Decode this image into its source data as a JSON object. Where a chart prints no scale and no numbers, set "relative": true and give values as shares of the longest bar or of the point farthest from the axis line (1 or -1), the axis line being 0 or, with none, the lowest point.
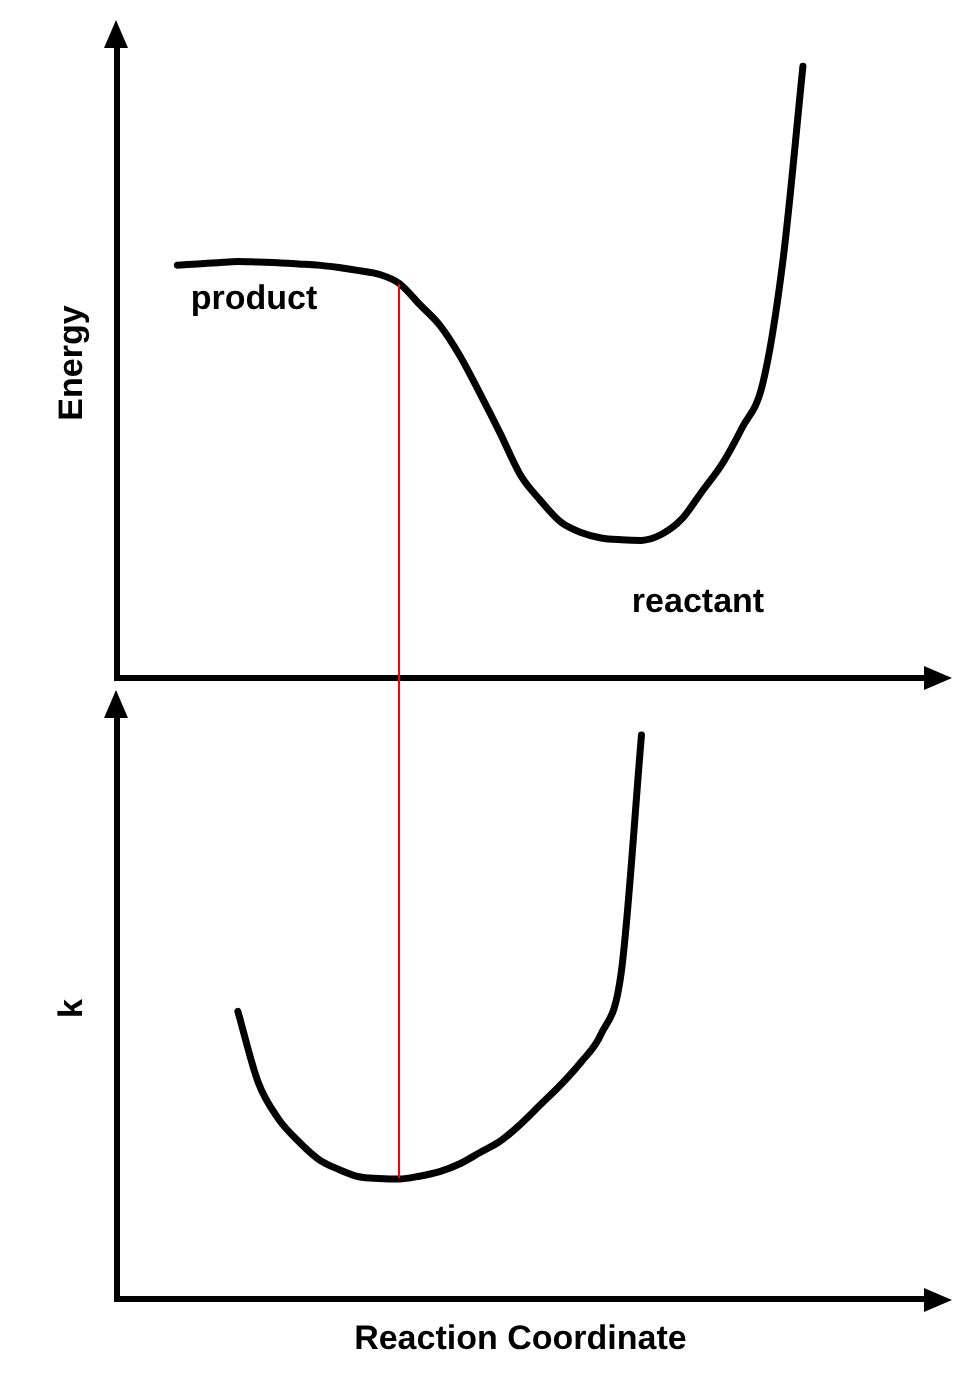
{
  "chart_data": [
    {
      "type": "line",
      "ylabel": "Energy",
      "relative": true,
      "tick_labels": false,
      "marker": "none",
      "categories": [
        null,
        null,
        null,
        null,
        null,
        null,
        null,
        null,
        null,
        null,
        null,
        null,
        null,
        null,
        null,
        null,
        null,
        null,
        null,
        null,
        null,
        null,
        null,
        null,
        null,
        null,
        null,
        null,
        null,
        null,
        null,
        null,
        null,
        null,
        null,
        null,
        null,
        null,
        null,
        null,
        null
      ],
      "series": [
        {
          "color": "#000000",
          "values": [
            null,
            null,
            null,
            0.675,
            0.677,
            0.679,
            0.681,
            0.68,
            0.679,
            0.677,
            0.675,
            0.671,
            0.666,
            0.66,
            0.645,
            0.611,
            0.577,
            0.527,
            0.465,
            0.4,
            0.332,
            0.29,
            0.255,
            0.238,
            0.229,
            0.226,
            0.225,
            0.235,
            0.26,
            0.305,
            0.35,
            0.41,
            0.48,
            0.68,
            1,
            null,
            null,
            null,
            null,
            null,
            null
          ]
        }
      ],
      "annotations": [
        "product",
        "reactant"
      ]
    },
    {
      "type": "line",
      "ylabel": "k",
      "xlabel": "Reaction Coordinate",
      "relative": true,
      "tick_labels": false,
      "marker": "none",
      "categories": [
        null,
        null,
        null,
        null,
        null,
        null,
        null,
        null,
        null,
        null,
        null,
        null,
        null,
        null,
        null,
        null,
        null,
        null,
        null,
        null,
        null,
        null,
        null,
        null,
        null,
        null,
        null,
        null,
        null,
        null,
        null,
        null,
        null,
        null,
        null,
        null,
        null,
        null,
        null,
        null,
        null
      ],
      "series": [
        {
          "color": "#000000",
          "values": [
            null,
            null,
            null,
            null,
            null,
            null,
            0.51,
            0.385,
            0.32,
            0.28,
            0.248,
            0.23,
            0.217,
            0.214,
            0.213,
            0.218,
            0.226,
            0.24,
            0.26,
            0.28,
            0.31,
            0.345,
            0.38,
            0.42,
            0.47,
            0.58,
            1,
            null,
            null,
            null,
            null,
            null,
            null,
            null,
            null,
            null,
            null,
            null,
            null,
            null,
            null
          ]
        }
      ]
    }
  ]
}
